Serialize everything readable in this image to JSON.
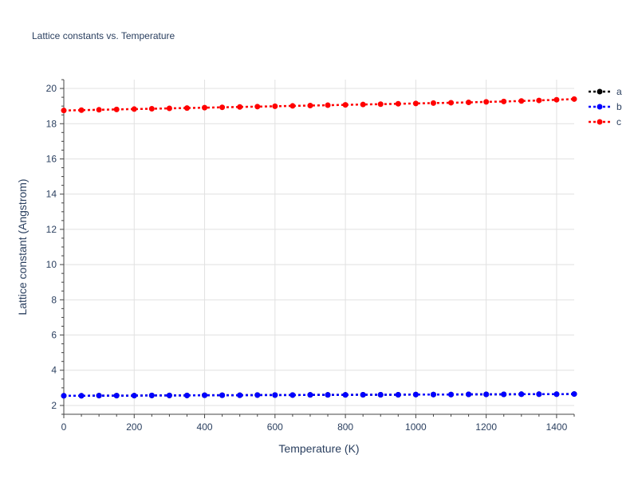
{
  "chart_data": {
    "type": "line",
    "title": "Lattice constants vs. Temperature",
    "xlabel": "Temperature (K)",
    "ylabel": "Lattice constant (Angstrom)",
    "xlim": [
      0,
      1450
    ],
    "ylim": [
      1.5,
      20.5
    ],
    "x_ticks": [
      0,
      200,
      400,
      600,
      800,
      1000,
      1200,
      1400
    ],
    "y_ticks": [
      2,
      4,
      6,
      8,
      10,
      12,
      14,
      16,
      18,
      20
    ],
    "grid": true,
    "legend_position": "top-right",
    "x": [
      0,
      50,
      100,
      150,
      200,
      250,
      300,
      350,
      400,
      450,
      500,
      550,
      600,
      650,
      700,
      750,
      800,
      850,
      900,
      950,
      1000,
      1050,
      1100,
      1150,
      1200,
      1250,
      1300,
      1350,
      1400,
      1450
    ],
    "series": [
      {
        "name": "a",
        "color": "#000000",
        "values": [
          2.55,
          2.55,
          2.56,
          2.56,
          2.56,
          2.57,
          2.57,
          2.57,
          2.58,
          2.58,
          2.58,
          2.59,
          2.59,
          2.59,
          2.6,
          2.6,
          2.6,
          2.61,
          2.61,
          2.61,
          2.62,
          2.62,
          2.62,
          2.63,
          2.63,
          2.63,
          2.64,
          2.64,
          2.64,
          2.65
        ]
      },
      {
        "name": "b",
        "color": "#0000ff",
        "values": [
          2.55,
          2.55,
          2.56,
          2.56,
          2.56,
          2.57,
          2.57,
          2.57,
          2.58,
          2.58,
          2.58,
          2.59,
          2.59,
          2.59,
          2.6,
          2.6,
          2.6,
          2.61,
          2.61,
          2.61,
          2.62,
          2.62,
          2.62,
          2.63,
          2.63,
          2.63,
          2.64,
          2.64,
          2.64,
          2.65
        ]
      },
      {
        "name": "c",
        "color": "#ff0000",
        "values": [
          18.75,
          18.77,
          18.79,
          18.81,
          18.83,
          18.85,
          18.87,
          18.89,
          18.91,
          18.93,
          18.95,
          18.97,
          18.99,
          19.01,
          19.03,
          19.05,
          19.07,
          19.09,
          19.11,
          19.13,
          19.15,
          19.17,
          19.19,
          19.21,
          19.24,
          19.26,
          19.29,
          19.32,
          19.36,
          19.4
        ]
      }
    ]
  }
}
